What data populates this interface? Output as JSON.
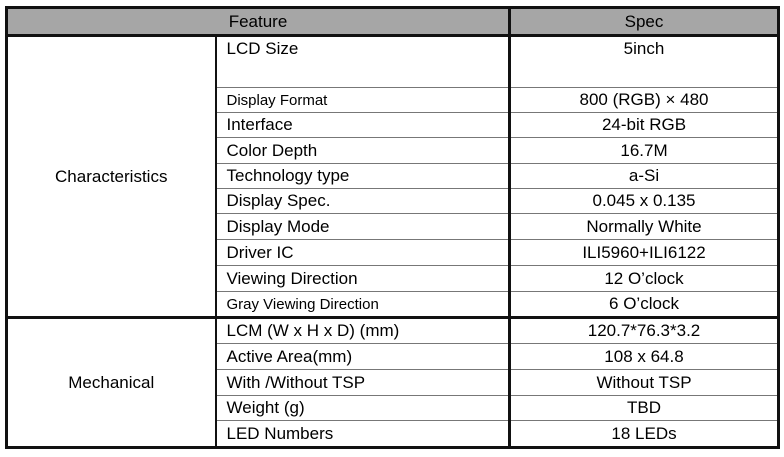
{
  "header": {
    "feature": "Feature",
    "spec": "Spec"
  },
  "groups": [
    {
      "name": "Characteristics",
      "rows": [
        {
          "feature": "LCD Size",
          "spec": "5inch"
        },
        {
          "feature": "Display Format",
          "spec": "800 (RGB) × 480"
        },
        {
          "feature": "Interface",
          "spec": "24-bit RGB"
        },
        {
          "feature": "Color Depth",
          "spec": "16.7M"
        },
        {
          "feature": "Technology type",
          "spec": "a-Si"
        },
        {
          "feature": "Display Spec.",
          "spec": "0.045 x 0.135"
        },
        {
          "feature": "Display Mode",
          "spec": "Normally White"
        },
        {
          "feature": "Driver IC",
          "spec": "ILI5960+ILI6122"
        },
        {
          "feature": "Viewing Direction",
          "spec": "12 O’clock"
        },
        {
          "feature": "Gray Viewing Direction",
          "spec": "6 O’clock"
        }
      ]
    },
    {
      "name": "Mechanical",
      "rows": [
        {
          "feature": "LCM (W x H x D) (mm)",
          "spec": "120.7*76.3*3.2"
        },
        {
          "feature": "Active Area(mm)",
          "spec": "108 x 64.8"
        },
        {
          "feature": "With /Without TSP",
          "spec": "Without TSP"
        },
        {
          "feature": "Weight (g)",
          "spec": "TBD"
        },
        {
          "feature": "LED Numbers",
          "spec": "18 LEDs"
        }
      ]
    }
  ]
}
